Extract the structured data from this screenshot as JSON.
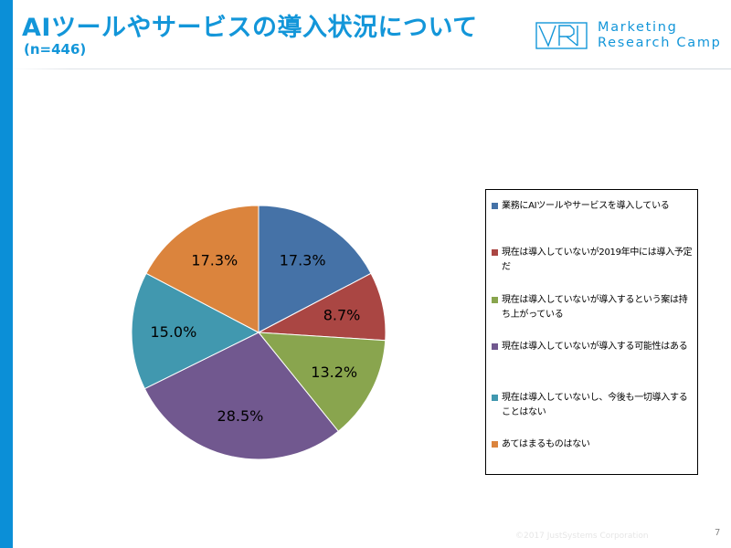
{
  "header": {
    "title": "AIツールやサービスの導入状況について",
    "subtitle": "(n=446)",
    "logo_line1": "Marketing",
    "logo_line2": "Research Camp"
  },
  "colors": {
    "accent": "#0b8fd7",
    "title": "#1396d9"
  },
  "chart_data": {
    "type": "pie",
    "categories": [
      "業務にAIツールやサービスを導入している",
      "現在は導入していないが2019年中には導入予定だ",
      "現在は導入していないが導入するという案は持ち上がっている",
      "現在は導入していないが導入する可能性はある",
      "現在は導入していないし、今後も一切導入することはない",
      "あてはまるものはない"
    ],
    "values": [
      17.3,
      8.7,
      13.2,
      28.5,
      15.0,
      17.3
    ],
    "labels": [
      "17.3%",
      "8.7%",
      "13.2%",
      "28.5%",
      "15.0%",
      "17.3%"
    ],
    "colors": [
      "#4572a7",
      "#aa4643",
      "#89a54e",
      "#71588f",
      "#4198af",
      "#db843d"
    ],
    "start_angle_deg": 0,
    "direction": "clockwise",
    "legend_position": "right"
  },
  "footer": {
    "copyright": "©2017 JustSystems Corporation",
    "page": "7"
  }
}
